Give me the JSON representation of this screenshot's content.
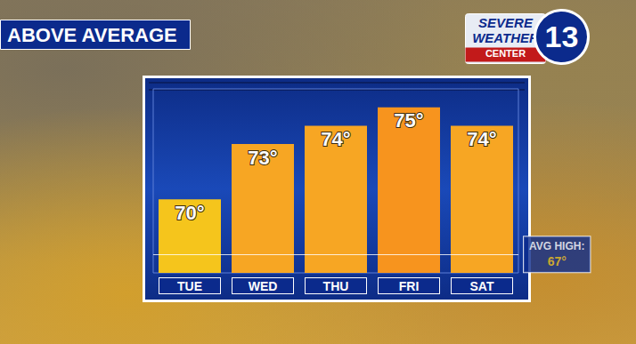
{
  "chart_data": {
    "type": "bar",
    "title": "ABOVE AVERAGE",
    "categories": [
      "TUE",
      "WED",
      "THU",
      "FRI",
      "SAT"
    ],
    "values": [
      70,
      73,
      74,
      75,
      74
    ],
    "value_labels": [
      "70°",
      "73°",
      "74°",
      "75°",
      "74°"
    ],
    "colors": [
      "#f5c51c",
      "#f7a623",
      "#f7a623",
      "#f7941e",
      "#f7a623"
    ],
    "ylim": [
      66,
      76
    ],
    "yticks": [],
    "tick_labels": "x",
    "data_labels": true,
    "grid": false,
    "annotations": [
      {
        "text": "AVG HIGH:",
        "value": 67,
        "value_label": "67°"
      }
    ]
  },
  "logo": {
    "lines": [
      "SEVERE",
      "WEATHER",
      "CENTER"
    ],
    "number": "13"
  }
}
